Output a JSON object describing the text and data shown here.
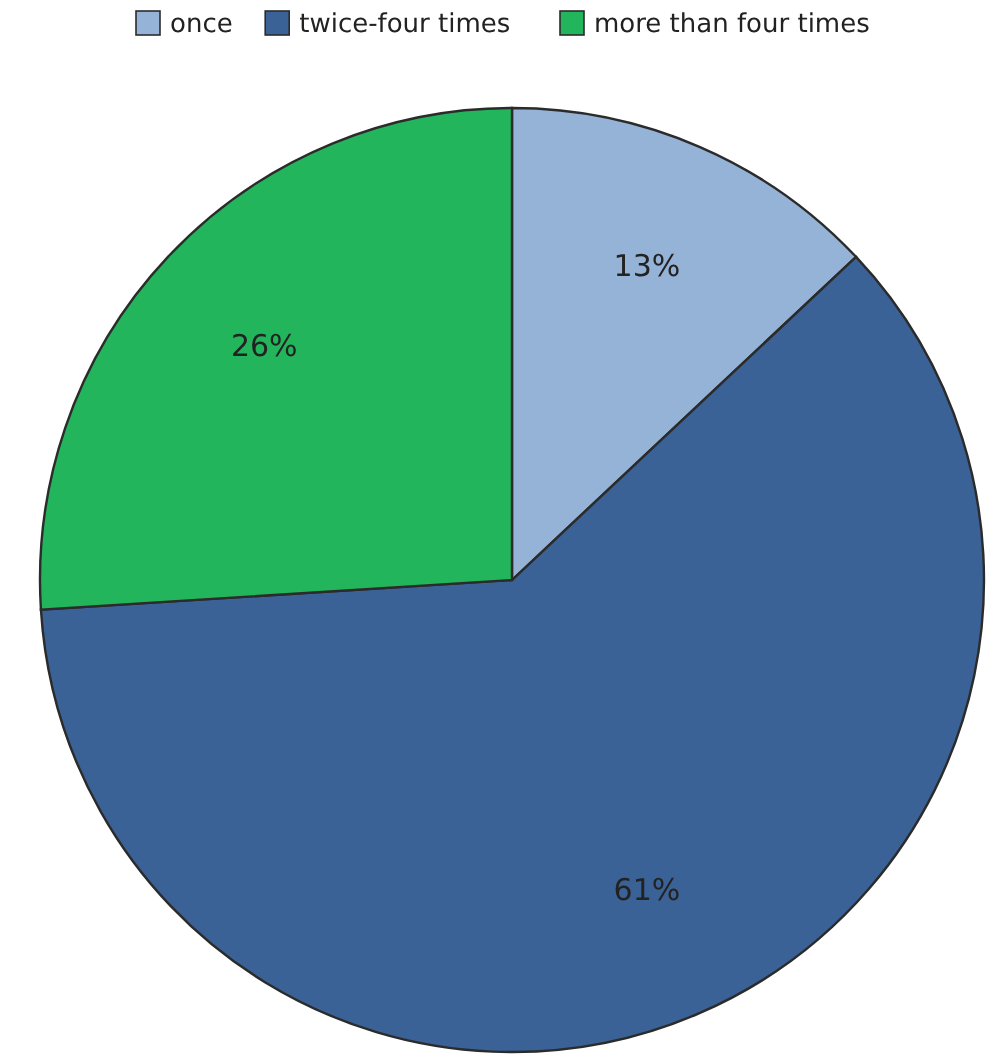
{
  "chart_data": {
    "type": "pie",
    "categories": [
      "once",
      "twice-four times",
      "more than four times"
    ],
    "values": [
      13,
      61,
      26
    ],
    "colors": [
      "#95b3d7",
      "#3a6296",
      "#23b55c"
    ],
    "value_labels": [
      "13%",
      "61%",
      "26%"
    ],
    "legend": "top"
  }
}
